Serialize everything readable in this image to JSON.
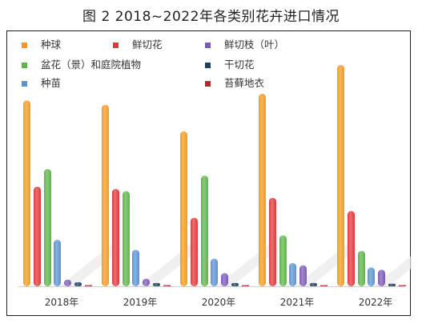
{
  "title": "图 2 2018~2022年各类别花卉进口情况",
  "chart_data": {
    "type": "bar",
    "title": "图 2 2018~2022年各类别花卉进口情况",
    "categories": [
      "2018年",
      "2019年",
      "2020年",
      "2021年",
      "2022年"
    ],
    "ylim": [
      0,
      100
    ],
    "grid": false,
    "legend_position": "top-left",
    "series": [
      {
        "name": "种球",
        "color": "#F39A1E",
        "values": [
          84,
          82,
          70,
          87,
          100
        ]
      },
      {
        "name": "鲜切花",
        "color": "#E0383B",
        "values": [
          45,
          44,
          31,
          40,
          34
        ]
      },
      {
        "name": "鲜切枝（叶）",
        "color": "#7B5BB6",
        "values": [
          3,
          3.5,
          6,
          9.5,
          7.5
        ]
      },
      {
        "name": "盆花（景）和庭院植物",
        "color": "#5EB447",
        "values": [
          53,
          43,
          50,
          23,
          16
        ]
      },
      {
        "name": "干切花",
        "color": "#1F3F60",
        "values": [
          1.8,
          1.5,
          1.5,
          1.5,
          1.2
        ]
      },
      {
        "name": "种苗",
        "color": "#5A93D4",
        "values": [
          21,
          16.5,
          12.5,
          10.5,
          8.5
        ]
      },
      {
        "name": "苔藓地衣",
        "color": "#B02A2E",
        "values": [
          0.5,
          0.4,
          0.3,
          0.3,
          0.3
        ]
      }
    ]
  }
}
